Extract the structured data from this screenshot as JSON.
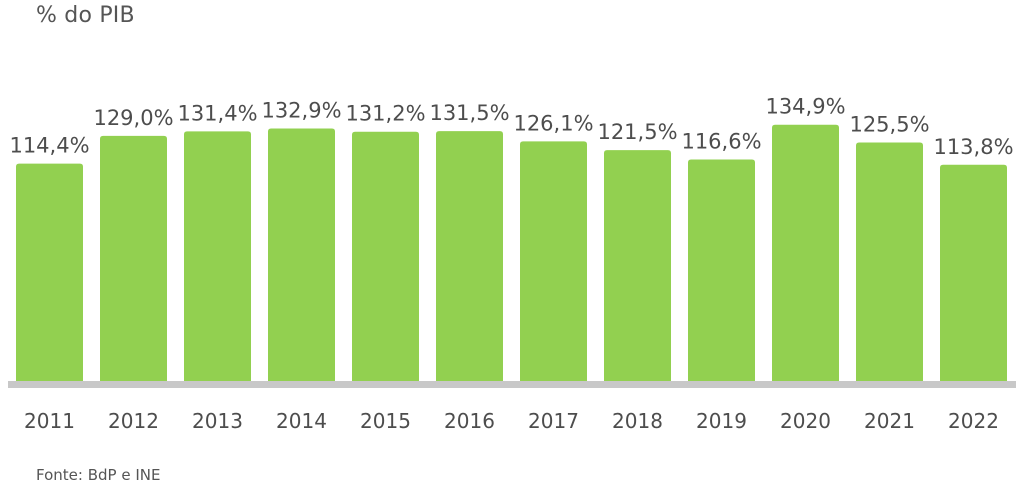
{
  "unit_label": "% do PIB",
  "source_note": "Fonte: BdP e INE",
  "colors": {
    "bar": "#92d050",
    "baseline": "#c8c8c8",
    "text": "#4d4d4d"
  },
  "chart_data": {
    "type": "bar",
    "categories": [
      "2011",
      "2012",
      "2013",
      "2014",
      "2015",
      "2016",
      "2017",
      "2018",
      "2019",
      "2020",
      "2021",
      "2022"
    ],
    "values": [
      114.4,
      129.0,
      131.4,
      132.9,
      131.2,
      131.5,
      126.1,
      121.5,
      116.6,
      134.9,
      125.5,
      113.8
    ],
    "data_labels": [
      "114,4%",
      "129,0%",
      "131,4%",
      "132,9%",
      "131,2%",
      "131,5%",
      "126,1%",
      "121,5%",
      "116,6%",
      "134,9%",
      "125,5%",
      "113,8%"
    ],
    "ylabel": "% do PIB",
    "ylim": [
      0,
      140
    ],
    "grid": false,
    "legend": "none"
  }
}
